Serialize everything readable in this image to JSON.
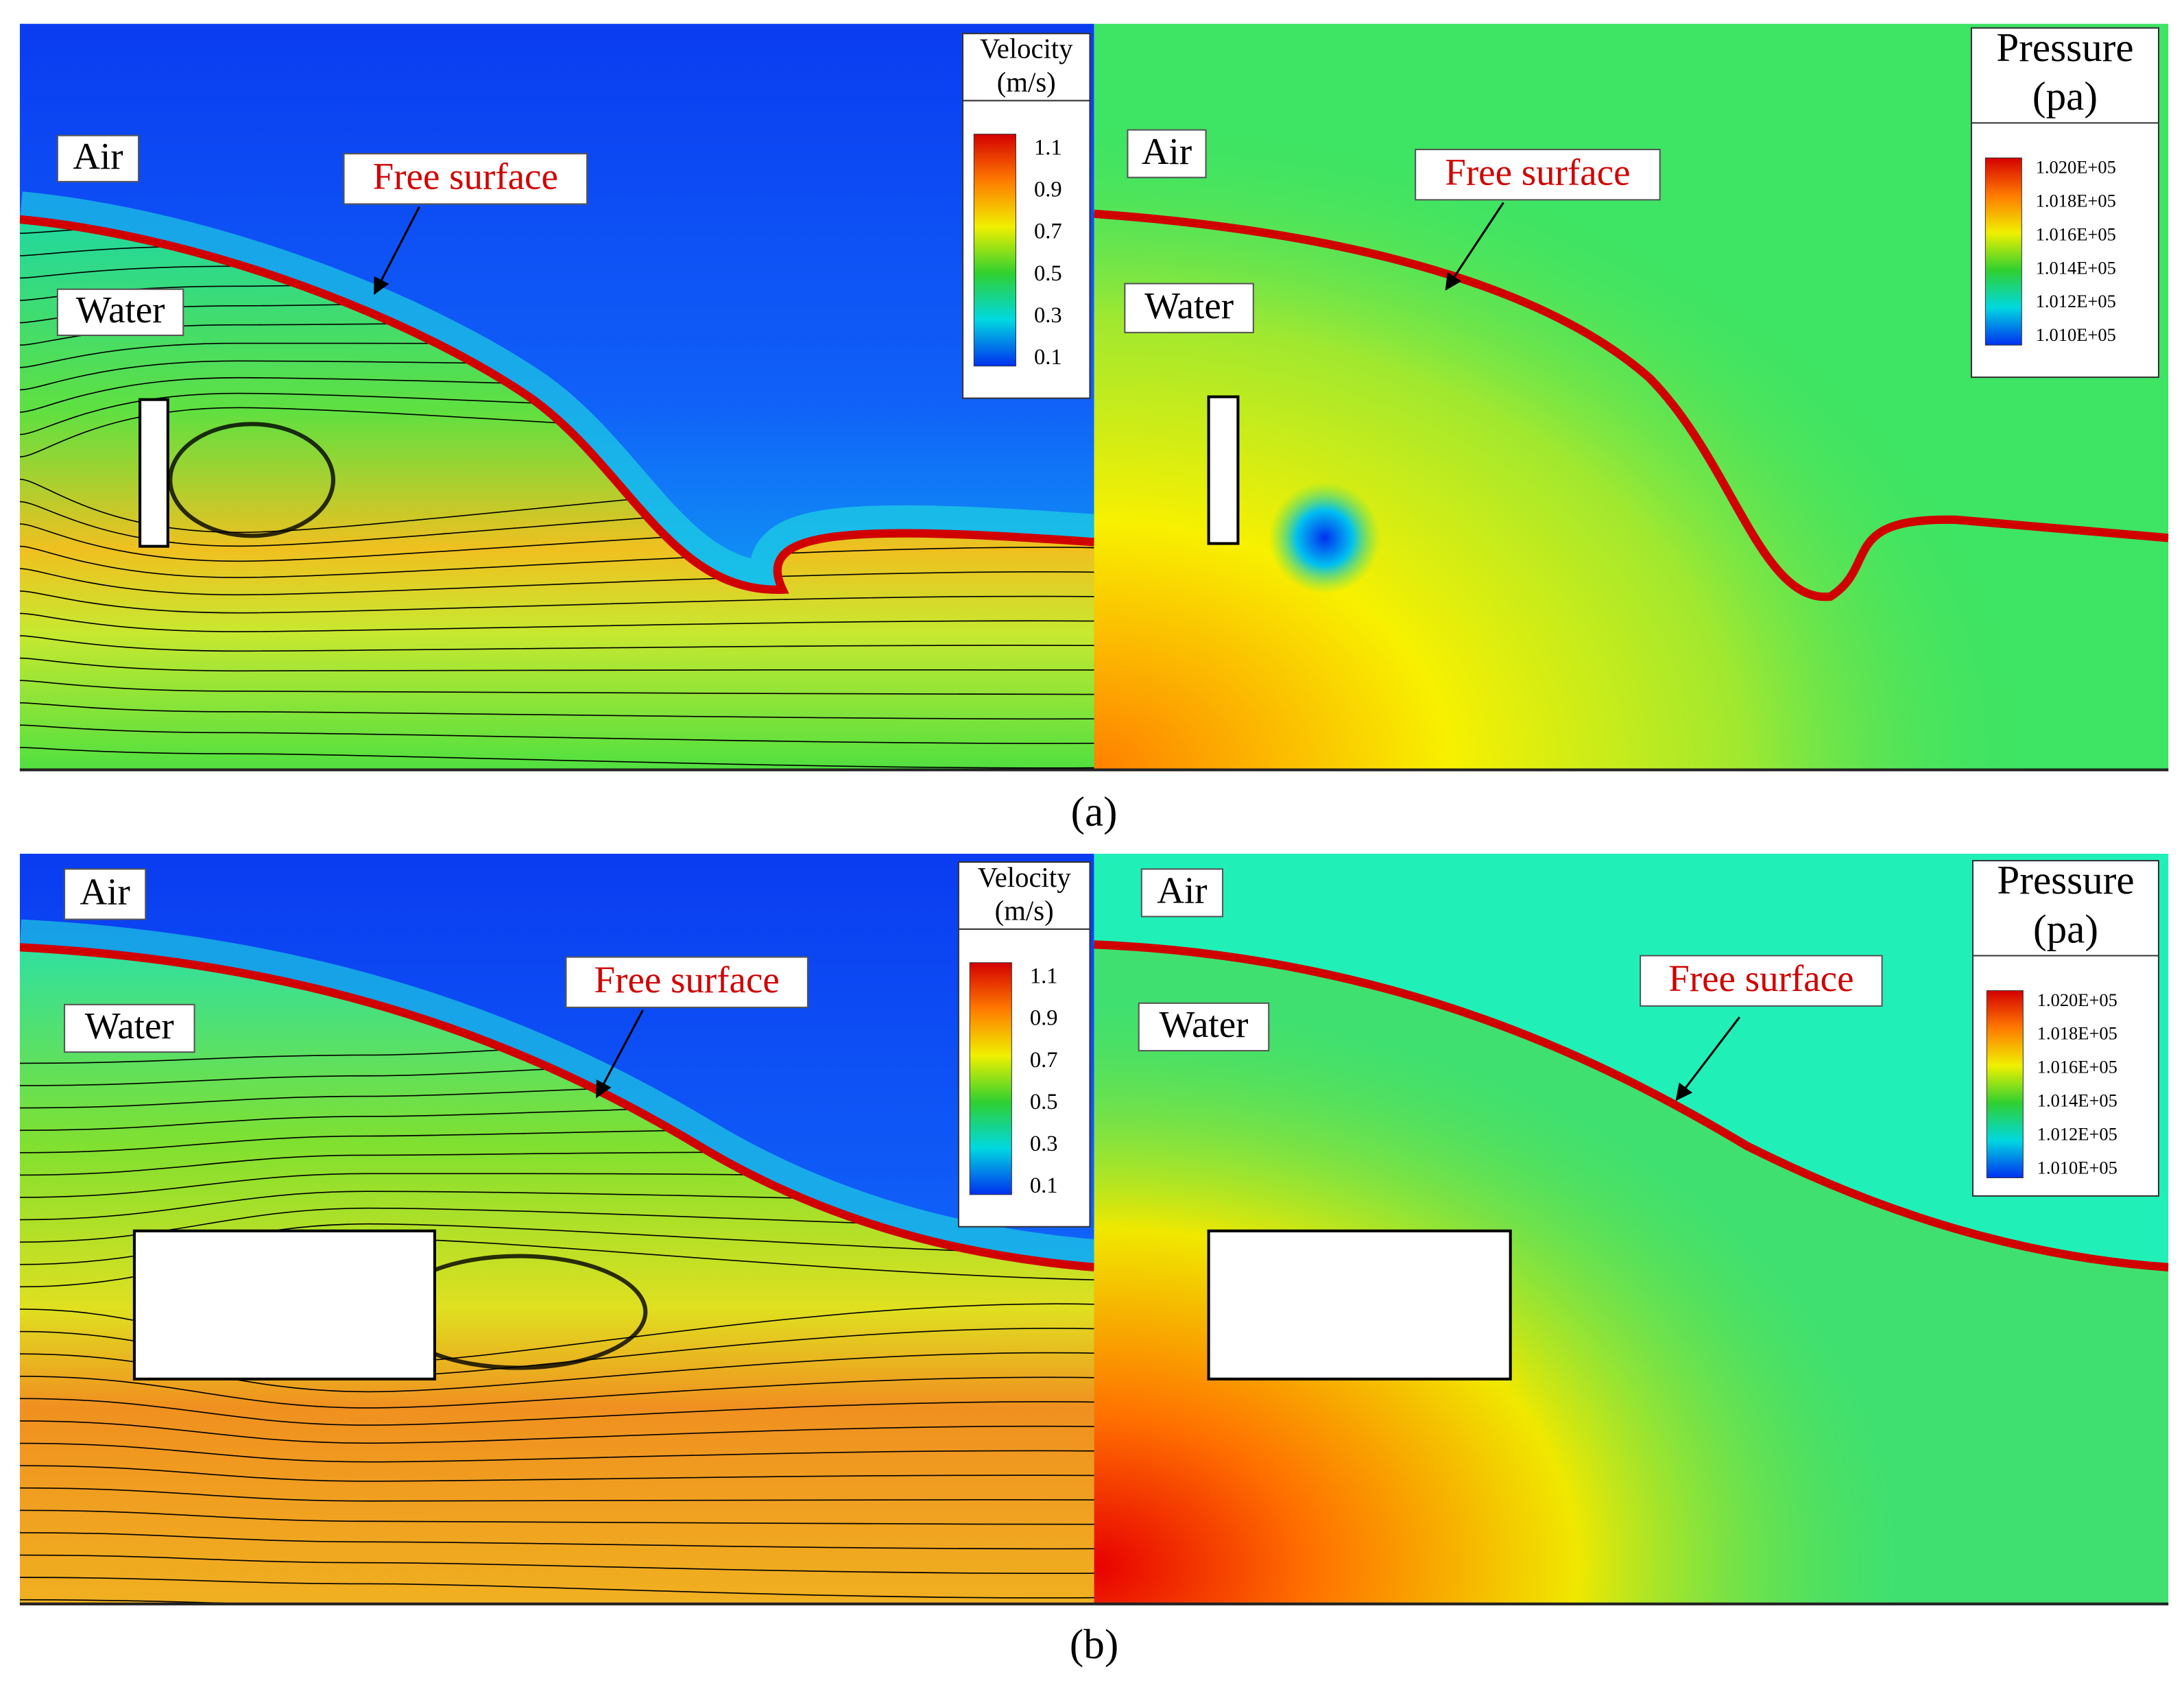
{
  "panels": [
    {
      "label": "(a)",
      "velocity": {
        "annotations": {
          "air": "Air",
          "water": "Water",
          "free_surface": "Free surface"
        },
        "legend": {
          "title": [
            "Velocity",
            "(m/s)"
          ],
          "ticks": [
            "1.1",
            "0.9",
            "0.7",
            "0.5",
            "0.3",
            "0.1"
          ]
        }
      },
      "pressure": {
        "annotations": {
          "air": "Air",
          "water": "Water",
          "free_surface": "Free surface"
        },
        "legend": {
          "title": [
            "Pressure",
            "(pa)"
          ],
          "ticks": [
            "1.020E+05",
            "1.018E+05",
            "1.016E+05",
            "1.014E+05",
            "1.012E+05",
            "1.010E+05"
          ]
        }
      }
    },
    {
      "label": "(b)",
      "velocity": {
        "annotations": {
          "air": "Air",
          "water": "Water",
          "free_surface": "Free surface"
        },
        "legend": {
          "title": [
            "Velocity",
            "(m/s)"
          ],
          "ticks": [
            "1.1",
            "0.9",
            "0.7",
            "0.5",
            "0.3",
            "0.1"
          ]
        }
      },
      "pressure": {
        "annotations": {
          "air": "Air",
          "water": "Water",
          "free_surface": "Free surface"
        },
        "legend": {
          "title": [
            "Pressure",
            "(pa)"
          ],
          "ticks": [
            "1.020E+05",
            "1.018E+05",
            "1.016E+05",
            "1.014E+05",
            "1.012E+05",
            "1.010E+05"
          ]
        }
      }
    }
  ]
}
